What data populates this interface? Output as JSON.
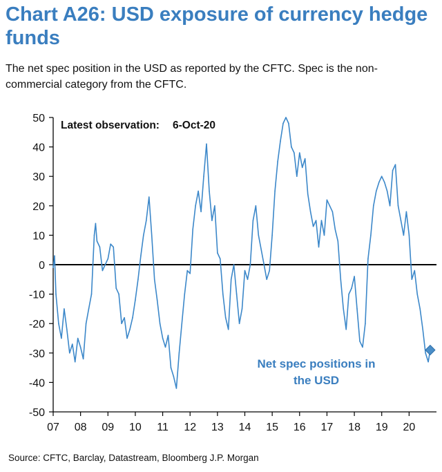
{
  "page": {
    "title": "Chart A26: USD exposure of currency hedge funds",
    "subtitle": "The net spec position in the USD as reported by the CFTC. Spec is the non-commercial category from the CFTC.",
    "source": "Source: CFTC, Barclay, Datastream, Bloomberg J.P. Morgan"
  },
  "colors": {
    "title": "#3a7ebf",
    "series": "#3b87c9",
    "marker": "#4a8ec8",
    "label": "#3a7ebf",
    "axis": "#000000"
  },
  "chart_data": {
    "type": "line",
    "title": "Chart A26: USD exposure of currency hedge funds",
    "xlabel": "",
    "ylabel": "",
    "ylim": [
      -50,
      50
    ],
    "yticks": [
      50,
      40,
      30,
      20,
      10,
      0,
      -10,
      -20,
      -30,
      -40,
      -50
    ],
    "xlim": [
      2007.0,
      2021.0
    ],
    "xticks": [
      {
        "label": "07",
        "x": 2007
      },
      {
        "label": "08",
        "x": 2008
      },
      {
        "label": "09",
        "x": 2009
      },
      {
        "label": "10",
        "x": 2010
      },
      {
        "label": "11",
        "x": 2011
      },
      {
        "label": "12",
        "x": 2012
      },
      {
        "label": "13",
        "x": 2013
      },
      {
        "label": "14",
        "x": 2014
      },
      {
        "label": "15",
        "x": 2015
      },
      {
        "label": "16",
        "x": 2016
      },
      {
        "label": "17",
        "x": 2017
      },
      {
        "label": "18",
        "x": 2018
      },
      {
        "label": "19",
        "x": 2019
      },
      {
        "label": "20",
        "x": 2020
      }
    ],
    "annotation": {
      "label": "Latest observation:",
      "value": "6-Oct-20"
    },
    "series": [
      {
        "name": "Net spec positions in the USD",
        "x": [
          2007.0,
          2007.05,
          2007.1,
          2007.2,
          2007.3,
          2007.4,
          2007.5,
          2007.6,
          2007.7,
          2007.8,
          2007.9,
          2008.0,
          2008.1,
          2008.2,
          2008.3,
          2008.4,
          2008.5,
          2008.55,
          2008.6,
          2008.7,
          2008.8,
          2008.9,
          2009.0,
          2009.1,
          2009.2,
          2009.3,
          2009.4,
          2009.5,
          2009.6,
          2009.7,
          2009.8,
          2009.9,
          2010.0,
          2010.1,
          2010.2,
          2010.3,
          2010.4,
          2010.5,
          2010.6,
          2010.7,
          2010.8,
          2010.9,
          2011.0,
          2011.1,
          2011.2,
          2011.3,
          2011.4,
          2011.5,
          2011.6,
          2011.7,
          2011.8,
          2011.9,
          2012.0,
          2012.1,
          2012.2,
          2012.3,
          2012.4,
          2012.5,
          2012.6,
          2012.7,
          2012.8,
          2012.9,
          2013.0,
          2013.1,
          2013.2,
          2013.3,
          2013.4,
          2013.5,
          2013.6,
          2013.7,
          2013.8,
          2013.9,
          2014.0,
          2014.1,
          2014.2,
          2014.3,
          2014.4,
          2014.5,
          2014.6,
          2014.7,
          2014.8,
          2014.9,
          2015.0,
          2015.1,
          2015.2,
          2015.3,
          2015.4,
          2015.5,
          2015.6,
          2015.7,
          2015.8,
          2015.9,
          2016.0,
          2016.1,
          2016.2,
          2016.3,
          2016.4,
          2016.5,
          2016.6,
          2016.7,
          2016.8,
          2016.9,
          2017.0,
          2017.1,
          2017.2,
          2017.3,
          2017.4,
          2017.5,
          2017.6,
          2017.7,
          2017.8,
          2017.9,
          2018.0,
          2018.1,
          2018.2,
          2018.3,
          2018.4,
          2018.5,
          2018.6,
          2018.7,
          2018.8,
          2018.9,
          2019.0,
          2019.1,
          2019.2,
          2019.3,
          2019.4,
          2019.5,
          2019.6,
          2019.7,
          2019.8,
          2019.9,
          2020.0,
          2020.1,
          2020.2,
          2020.3,
          2020.4,
          2020.5,
          2020.6,
          2020.7,
          2020.77
        ],
        "values": [
          -1,
          3,
          -10,
          -20,
          -25,
          -15,
          -22,
          -30,
          -27,
          -33,
          -25,
          -28,
          -32,
          -20,
          -15,
          -10,
          10,
          14,
          8,
          6,
          -2,
          0,
          2,
          7,
          6,
          -8,
          -10,
          -20,
          -18,
          -25,
          -22,
          -18,
          -12,
          -5,
          3,
          10,
          15,
          23,
          10,
          -5,
          -12,
          -20,
          -25,
          -28,
          -24,
          -35,
          -38,
          -42,
          -30,
          -20,
          -10,
          -2,
          -3,
          12,
          20,
          25,
          18,
          30,
          41,
          25,
          15,
          20,
          4,
          2,
          -10,
          -18,
          -22,
          -5,
          0,
          -10,
          -20,
          -15,
          -2,
          -5,
          0,
          15,
          20,
          10,
          5,
          0,
          -5,
          -2,
          10,
          25,
          35,
          42,
          48,
          50,
          48,
          40,
          38,
          30,
          38,
          33,
          36,
          24,
          18,
          13,
          15,
          6,
          15,
          10,
          22,
          20,
          18,
          12,
          8,
          -5,
          -15,
          -22,
          -10,
          -8,
          -4,
          -15,
          -26,
          -28,
          -20,
          2,
          10,
          20,
          25,
          28,
          30,
          28,
          25,
          20,
          32,
          34,
          20,
          15,
          10,
          18,
          10,
          -5,
          -2,
          -10,
          -15,
          -22,
          -30,
          -33,
          -29
        ]
      }
    ],
    "series_label": [
      "Net spec positions in",
      "the USD"
    ],
    "last_point": {
      "x": 2020.77,
      "y": -29
    }
  }
}
